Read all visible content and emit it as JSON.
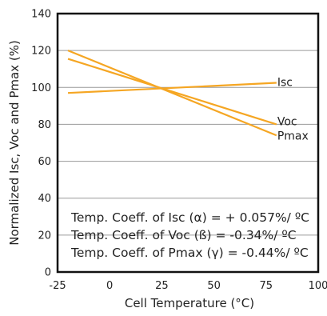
{
  "chart_data": {
    "type": "line",
    "xlabel": "Cell Temperature (°C)",
    "ylabel": "Normalized Isc, Voc and Pmax (%)",
    "xlim": [
      -25,
      100
    ],
    "ylim": [
      0,
      140
    ],
    "xticks": [
      -25,
      0,
      25,
      50,
      75,
      100
    ],
    "yticks": [
      0,
      20,
      40,
      60,
      80,
      100,
      120,
      140
    ],
    "grid": "horizontal",
    "line_color": "#F5A623",
    "series": [
      {
        "name": "Isc",
        "x": [
          -20,
          80
        ],
        "y": [
          97,
          102.5
        ]
      },
      {
        "name": "Voc",
        "x": [
          -20,
          80
        ],
        "y": [
          115.5,
          80
        ]
      },
      {
        "name": "Pmax",
        "x": [
          -20,
          80
        ],
        "y": [
          120,
          74
        ]
      }
    ],
    "annotations": [
      "Temp. Coeff. of Isc (α) = + 0.057%/ ºC",
      "Temp. Coeff. of Voc (ß) = -0.34%/ ºC",
      "Temp. Coeff. of Pmax (γ) = -0.44%/ ºC"
    ]
  }
}
